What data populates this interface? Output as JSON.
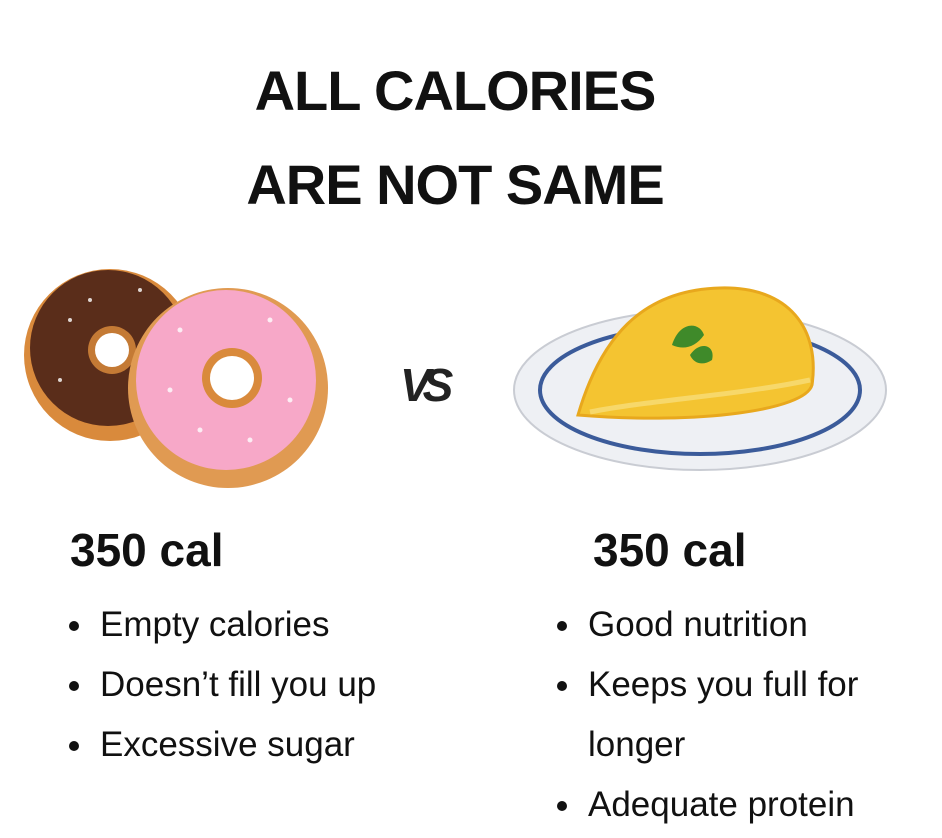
{
  "title": {
    "line1": "ALL CALORIES",
    "line2": "ARE NOT SAME"
  },
  "versus": "VS",
  "left": {
    "calories": "350 cal",
    "points": [
      "Empty calories",
      "Doesn’t fill you up",
      "Excessive sugar"
    ]
  },
  "right": {
    "calories": "350 cal",
    "points": [
      "Good nutrition",
      "Keeps you full for longer",
      "Adequate protein"
    ]
  }
}
